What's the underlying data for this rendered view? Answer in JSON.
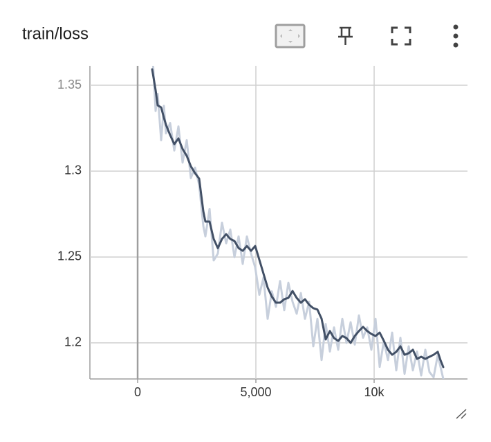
{
  "chart_data": {
    "type": "line",
    "title": "train/loss",
    "x": [
      614,
      760,
      848,
      994,
      1111,
      1199,
      1374,
      1550,
      1725,
      1901,
      2076,
      2251,
      2427,
      2602,
      2778,
      2865,
      3041,
      3216,
      3392,
      3567,
      3743,
      3918,
      4094,
      4269,
      4444,
      4620,
      4795,
      4971,
      5146,
      5322,
      5497,
      5673,
      5848,
      6023,
      6199,
      6374,
      6550,
      6725,
      6901,
      7076,
      7252,
      7427,
      7602,
      7778,
      7953,
      8129,
      8304,
      8480,
      8655,
      8831,
      9006,
      9181,
      9357,
      9532,
      9708,
      9883,
      10059,
      10234,
      10410,
      10585,
      10761,
      10936,
      11111,
      11287,
      11462,
      11638,
      11813,
      11989,
      12164,
      12340,
      12515,
      12690,
      12807,
      12924
    ],
    "series": [
      {
        "color": "#c7cfdc",
        "values": [
          1.372,
          1.335,
          1.345,
          1.318,
          1.338,
          1.322,
          1.328,
          1.312,
          1.326,
          1.305,
          1.318,
          1.296,
          1.302,
          1.292,
          1.268,
          1.262,
          1.278,
          1.248,
          1.252,
          1.27,
          1.258,
          1.266,
          1.25,
          1.262,
          1.246,
          1.262,
          1.252,
          1.244,
          1.228,
          1.238,
          1.214,
          1.23,
          1.221,
          1.236,
          1.219,
          1.235,
          1.224,
          1.217,
          1.229,
          1.214,
          1.224,
          1.198,
          1.214,
          1.19,
          1.211,
          1.195,
          1.209,
          1.196,
          1.214,
          1.2,
          1.212,
          1.199,
          1.216,
          1.203,
          1.209,
          1.196,
          1.214,
          1.186,
          1.201,
          1.19,
          1.206,
          1.184,
          1.203,
          1.182,
          1.198,
          1.184,
          1.195,
          1.181,
          1.196,
          1.183,
          1.18,
          1.193,
          1.186,
          1.179
        ]
      },
      {
        "color": "#425066",
        "values": [
          1.3593,
          1.3472,
          1.3383,
          1.3371,
          1.3311,
          1.327,
          1.321,
          1.3157,
          1.319,
          1.3129,
          1.3089,
          1.3028,
          1.2988,
          1.2956,
          1.2766,
          1.2706,
          1.2706,
          1.2605,
          1.2552,
          1.2605,
          1.2633,
          1.2605,
          1.2593,
          1.2552,
          1.2536,
          1.2564,
          1.2536,
          1.2564,
          1.2484,
          1.2403,
          1.2322,
          1.227,
          1.2234,
          1.2234,
          1.2254,
          1.2262,
          1.2302,
          1.2262,
          1.2234,
          1.2254,
          1.2222,
          1.2202,
          1.2194,
          1.2141,
          1.202,
          1.2069,
          1.2028,
          1.2012,
          1.204,
          1.2028,
          1.2,
          1.204,
          1.2069,
          1.2093,
          1.2069,
          1.2052,
          1.204,
          1.206,
          1.2012,
          1.196,
          1.1931,
          1.1948,
          1.198,
          1.1931,
          1.194,
          1.196,
          1.1907,
          1.1919,
          1.1907,
          1.1919,
          1.1931,
          1.1948,
          1.1899,
          1.1859
        ]
      }
    ],
    "xlim": [
      -2018,
      13947
    ],
    "ylim": [
      1.179,
      1.3613
    ],
    "xticks": [
      0,
      {
        "value": 5000,
        "label": "5,000"
      },
      {
        "value": 10000,
        "label": "10k"
      }
    ],
    "yticks": [
      1.2,
      1.25,
      1.3,
      1.35
    ],
    "grid": true
  }
}
